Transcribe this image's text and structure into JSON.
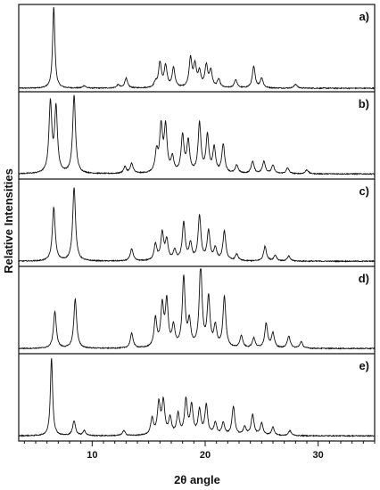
{
  "chart_data": {
    "type": "line",
    "xlabel": "2θ angle",
    "ylabel": "Relative Intensities",
    "xlim": [
      3.5,
      35
    ],
    "x_major_ticks": [
      10,
      20,
      30
    ],
    "x_minor_step": 1,
    "grid": false,
    "series": [
      {
        "label": "a)",
        "baseline": 0.01,
        "peaks": [
          [
            6.6,
            1.0,
            0.12
          ],
          [
            9.3,
            0.03,
            0.15
          ],
          [
            12.3,
            0.04,
            0.15
          ],
          [
            13.0,
            0.12,
            0.15
          ],
          [
            15.6,
            0.06,
            0.15
          ],
          [
            16.0,
            0.3,
            0.15
          ],
          [
            16.5,
            0.26,
            0.15
          ],
          [
            17.2,
            0.24,
            0.15
          ],
          [
            18.7,
            0.35,
            0.15
          ],
          [
            19.1,
            0.26,
            0.15
          ],
          [
            19.5,
            0.18,
            0.15
          ],
          [
            20.1,
            0.26,
            0.15
          ],
          [
            20.5,
            0.2,
            0.15
          ],
          [
            21.2,
            0.1,
            0.15
          ],
          [
            22.7,
            0.1,
            0.15
          ],
          [
            24.3,
            0.26,
            0.15
          ],
          [
            25.0,
            0.12,
            0.15
          ],
          [
            28.0,
            0.05,
            0.15
          ]
        ]
      },
      {
        "label": "b)",
        "baseline": 0.03,
        "peaks": [
          [
            6.3,
            0.85,
            0.15
          ],
          [
            6.8,
            0.78,
            0.15
          ],
          [
            8.4,
            0.95,
            0.15
          ],
          [
            12.9,
            0.08,
            0.15
          ],
          [
            13.5,
            0.12,
            0.15
          ],
          [
            15.7,
            0.25,
            0.15
          ],
          [
            16.1,
            0.55,
            0.15
          ],
          [
            16.5,
            0.55,
            0.15
          ],
          [
            17.1,
            0.18,
            0.15
          ],
          [
            18.0,
            0.45,
            0.15
          ],
          [
            18.5,
            0.38,
            0.15
          ],
          [
            19.5,
            0.6,
            0.15
          ],
          [
            20.2,
            0.45,
            0.15
          ],
          [
            20.8,
            0.3,
            0.15
          ],
          [
            21.6,
            0.35,
            0.15
          ],
          [
            22.8,
            0.1,
            0.15
          ],
          [
            24.2,
            0.15,
            0.15
          ],
          [
            25.2,
            0.15,
            0.15
          ],
          [
            26.0,
            0.1,
            0.15
          ],
          [
            27.3,
            0.07,
            0.15
          ],
          [
            29.0,
            0.05,
            0.15
          ]
        ]
      },
      {
        "label": "c)",
        "baseline": 0.03,
        "peaks": [
          [
            6.6,
            0.65,
            0.15
          ],
          [
            8.4,
            0.9,
            0.15
          ],
          [
            13.5,
            0.15,
            0.15
          ],
          [
            15.6,
            0.2,
            0.15
          ],
          [
            16.2,
            0.33,
            0.15
          ],
          [
            16.6,
            0.24,
            0.15
          ],
          [
            17.3,
            0.12,
            0.15
          ],
          [
            18.1,
            0.46,
            0.15
          ],
          [
            18.7,
            0.2,
            0.15
          ],
          [
            19.5,
            0.54,
            0.15
          ],
          [
            20.3,
            0.36,
            0.15
          ],
          [
            20.9,
            0.15,
            0.15
          ],
          [
            21.7,
            0.36,
            0.15
          ],
          [
            22.8,
            0.08,
            0.15
          ],
          [
            25.3,
            0.18,
            0.15
          ],
          [
            26.2,
            0.07,
            0.15
          ],
          [
            27.4,
            0.06,
            0.15
          ]
        ]
      },
      {
        "label": "d)",
        "baseline": 0.03,
        "peaks": [
          [
            6.7,
            0.45,
            0.15
          ],
          [
            8.5,
            0.6,
            0.15
          ],
          [
            13.5,
            0.18,
            0.15
          ],
          [
            15.6,
            0.35,
            0.15
          ],
          [
            16.2,
            0.5,
            0.15
          ],
          [
            16.6,
            0.55,
            0.15
          ],
          [
            17.2,
            0.25,
            0.15
          ],
          [
            18.1,
            0.85,
            0.15
          ],
          [
            18.6,
            0.3,
            0.15
          ],
          [
            19.6,
            1.0,
            0.15
          ],
          [
            20.3,
            0.6,
            0.15
          ],
          [
            20.9,
            0.25,
            0.15
          ],
          [
            21.7,
            0.62,
            0.15
          ],
          [
            23.2,
            0.15,
            0.15
          ],
          [
            24.3,
            0.12,
            0.15
          ],
          [
            25.4,
            0.3,
            0.15
          ],
          [
            26.0,
            0.18,
            0.15
          ],
          [
            27.4,
            0.15,
            0.15
          ],
          [
            28.5,
            0.08,
            0.15
          ]
        ]
      },
      {
        "label": "e)",
        "baseline": 0.03,
        "peaks": [
          [
            6.4,
            0.95,
            0.12
          ],
          [
            8.4,
            0.18,
            0.15
          ],
          [
            9.3,
            0.06,
            0.15
          ],
          [
            12.8,
            0.06,
            0.15
          ],
          [
            15.3,
            0.2,
            0.15
          ],
          [
            15.9,
            0.38,
            0.15
          ],
          [
            16.3,
            0.4,
            0.15
          ],
          [
            16.9,
            0.2,
            0.15
          ],
          [
            17.6,
            0.25,
            0.15
          ],
          [
            18.3,
            0.42,
            0.15
          ],
          [
            18.8,
            0.35,
            0.15
          ],
          [
            19.5,
            0.3,
            0.15
          ],
          [
            20.1,
            0.36,
            0.15
          ],
          [
            20.9,
            0.15,
            0.15
          ],
          [
            21.6,
            0.15,
            0.15
          ],
          [
            22.5,
            0.35,
            0.15
          ],
          [
            23.5,
            0.1,
            0.15
          ],
          [
            24.2,
            0.25,
            0.15
          ],
          [
            25.0,
            0.15,
            0.15
          ],
          [
            26.0,
            0.1,
            0.15
          ],
          [
            27.5,
            0.06,
            0.15
          ]
        ]
      }
    ],
    "x_tick_labels": [
      "10",
      "20",
      "30"
    ]
  }
}
